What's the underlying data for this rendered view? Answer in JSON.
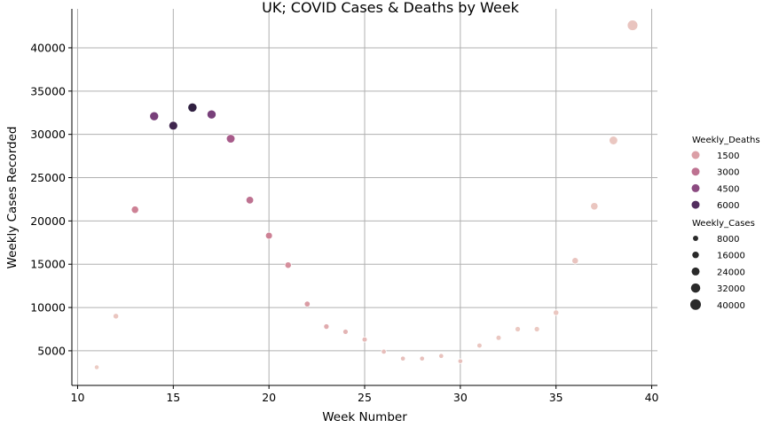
{
  "chart_data": {
    "type": "scatter",
    "title": "UK; COVID Cases & Deaths by Week",
    "xlabel": "Week Number",
    "ylabel": "Weekly Cases Recorded",
    "xlim": [
      9.7,
      40.3
    ],
    "ylim": [
      1000,
      44500
    ],
    "xticks": [
      10,
      15,
      20,
      25,
      30,
      35,
      40
    ],
    "yticks": [
      5000,
      10000,
      15000,
      20000,
      25000,
      30000,
      35000,
      40000
    ],
    "grid": true,
    "legend_placement": "right",
    "hue": "Weekly_Deaths",
    "size": "Weekly_Cases",
    "points": [
      {
        "week": 11,
        "cases": 3100,
        "deaths": 10
      },
      {
        "week": 12,
        "cases": 9000,
        "deaths": 200
      },
      {
        "week": 13,
        "cases": 21300,
        "deaths": 2500
      },
      {
        "week": 14,
        "cases": 32100,
        "deaths": 5000
      },
      {
        "week": 15,
        "cases": 31000,
        "deaths": 6500
      },
      {
        "week": 16,
        "cases": 33100,
        "deaths": 6900
      },
      {
        "week": 17,
        "cases": 32300,
        "deaths": 5000
      },
      {
        "week": 18,
        "cases": 29500,
        "deaths": 3800
      },
      {
        "week": 19,
        "cases": 22400,
        "deaths": 3000
      },
      {
        "week": 20,
        "cases": 18300,
        "deaths": 2500
      },
      {
        "week": 21,
        "cases": 14900,
        "deaths": 2000
      },
      {
        "week": 22,
        "cases": 10400,
        "deaths": 1600
      },
      {
        "week": 23,
        "cases": 7800,
        "deaths": 1100
      },
      {
        "week": 24,
        "cases": 7200,
        "deaths": 800
      },
      {
        "week": 25,
        "cases": 6300,
        "deaths": 600
      },
      {
        "week": 26,
        "cases": 4900,
        "deaths": 450
      },
      {
        "week": 27,
        "cases": 4100,
        "deaths": 400
      },
      {
        "week": 28,
        "cases": 4100,
        "deaths": 350
      },
      {
        "week": 29,
        "cases": 4400,
        "deaths": 300
      },
      {
        "week": 30,
        "cases": 3800,
        "deaths": 400
      },
      {
        "week": 31,
        "cases": 5600,
        "deaths": 200
      },
      {
        "week": 32,
        "cases": 6500,
        "deaths": 150
      },
      {
        "week": 33,
        "cases": 7500,
        "deaths": 100
      },
      {
        "week": 34,
        "cases": 7500,
        "deaths": 100
      },
      {
        "week": 35,
        "cases": 9400,
        "deaths": 150
      },
      {
        "week": 36,
        "cases": 15400,
        "deaths": 250
      },
      {
        "week": 37,
        "cases": 21700,
        "deaths": 200
      },
      {
        "week": 38,
        "cases": 29300,
        "deaths": 150
      },
      {
        "week": 39,
        "cases": 42600,
        "deaths": 250
      }
    ],
    "legend": {
      "hue_title": "Weekly_Deaths",
      "hue_entries": [
        {
          "label": "1500",
          "value": 1500
        },
        {
          "label": "3000",
          "value": 3000
        },
        {
          "label": "4500",
          "value": 4500
        },
        {
          "label": "6000",
          "value": 6000
        }
      ],
      "size_title": "Weekly_Cases",
      "size_entries": [
        {
          "label": "8000",
          "value": 8000
        },
        {
          "label": "16000",
          "value": 16000
        },
        {
          "label": "24000",
          "value": 24000
        },
        {
          "label": "32000",
          "value": 32000
        },
        {
          "label": "40000",
          "value": 40000
        }
      ]
    }
  }
}
